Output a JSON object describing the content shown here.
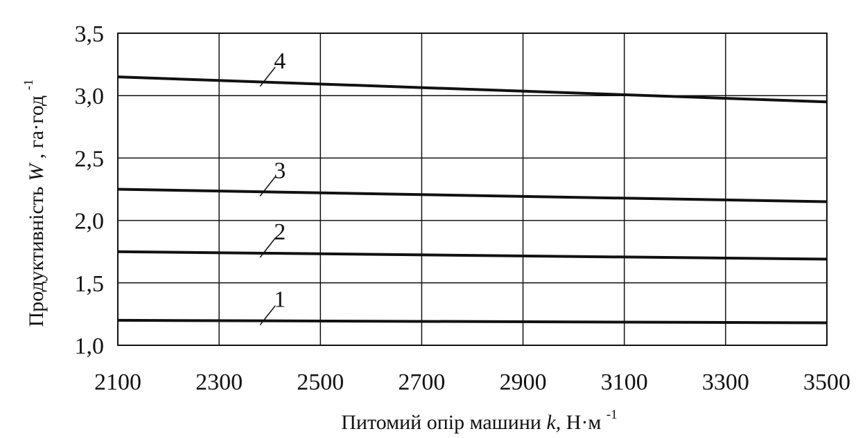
{
  "chart_data": {
    "type": "line",
    "xlabel": "Питомий опір машини",
    "xlabel_var": "k,",
    "xlabel_unit": "Н·м",
    "xlabel_unit_exp": "-1",
    "ylabel": "Продуктивність",
    "ylabel_var": "W",
    "ylabel_unit": ", га·год",
    "ylabel_unit_exp": "-1",
    "xlim": [
      2100,
      3500
    ],
    "ylim": [
      1.0,
      3.5
    ],
    "x_ticks": [
      2100,
      2300,
      2500,
      2700,
      2900,
      3100,
      3300,
      3500
    ],
    "x_tick_labels": [
      "2100",
      "2300",
      "2500",
      "2700",
      "2900",
      "3100",
      "3300",
      "3500"
    ],
    "y_ticks": [
      1.0,
      1.5,
      2.0,
      2.5,
      3.0,
      3.5
    ],
    "y_tick_labels": [
      "1,0",
      "1,5",
      "2,0",
      "2,5",
      "3,0",
      "3,5"
    ],
    "grid": true,
    "series": [
      {
        "label": "1",
        "x": [
          2100,
          3500
        ],
        "y": [
          1.2,
          1.18
        ],
        "label_at_x": 2400
      },
      {
        "label": "2",
        "x": [
          2100,
          3500
        ],
        "y": [
          1.75,
          1.69
        ],
        "label_at_x": 2400
      },
      {
        "label": "3",
        "x": [
          2100,
          3500
        ],
        "y": [
          2.25,
          2.15
        ],
        "label_at_x": 2400
      },
      {
        "label": "4",
        "x": [
          2100,
          3500
        ],
        "y": [
          3.15,
          2.95
        ],
        "label_at_x": 2400
      }
    ]
  }
}
